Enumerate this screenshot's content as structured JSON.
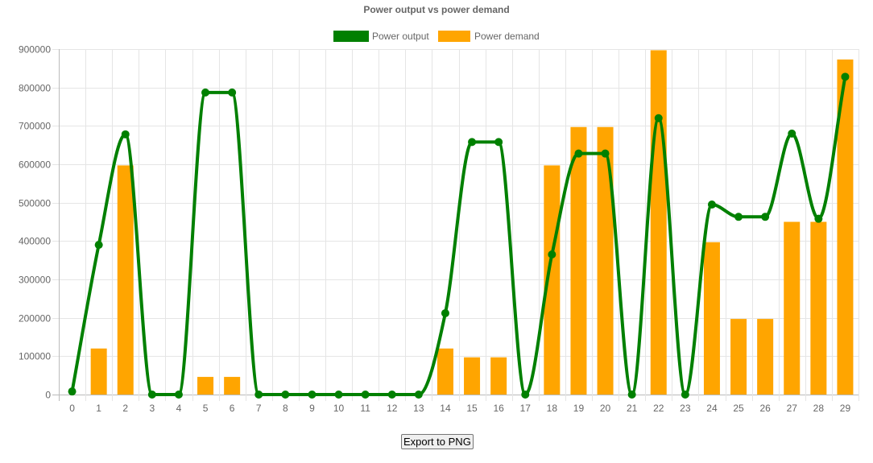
{
  "chart_data": {
    "type": "bar",
    "title": "Power output vs power demand",
    "categories": [
      "0",
      "1",
      "2",
      "3",
      "4",
      "5",
      "6",
      "7",
      "8",
      "9",
      "10",
      "11",
      "12",
      "13",
      "14",
      "15",
      "16",
      "17",
      "18",
      "19",
      "20",
      "21",
      "22",
      "23",
      "24",
      "25",
      "26",
      "27",
      "28",
      "29"
    ],
    "ylim": [
      0,
      900000
    ],
    "yticks": [
      0,
      100000,
      200000,
      300000,
      400000,
      500000,
      600000,
      700000,
      800000,
      900000
    ],
    "grid": true,
    "legend_position": "top",
    "series": [
      {
        "name": "Power output",
        "type": "line",
        "smooth": true,
        "color": "#008000",
        "values": [
          8000,
          390000,
          678000,
          0,
          0,
          787000,
          787000,
          0,
          0,
          0,
          0,
          0,
          0,
          0,
          212000,
          658000,
          658000,
          0,
          365000,
          628000,
          628000,
          0,
          720000,
          0,
          495000,
          463000,
          463000,
          680000,
          458000,
          828000
        ]
      },
      {
        "name": "Power demand",
        "type": "bar",
        "color": "#ffa500",
        "values": [
          0,
          120000,
          597000,
          0,
          0,
          46000,
          46000,
          0,
          0,
          0,
          0,
          0,
          0,
          0,
          120000,
          97000,
          97000,
          0,
          597000,
          697000,
          697000,
          0,
          897000,
          0,
          397000,
          197000,
          197000,
          450000,
          450000,
          873000
        ]
      }
    ]
  },
  "export_button": {
    "label": "Export to PNG"
  }
}
